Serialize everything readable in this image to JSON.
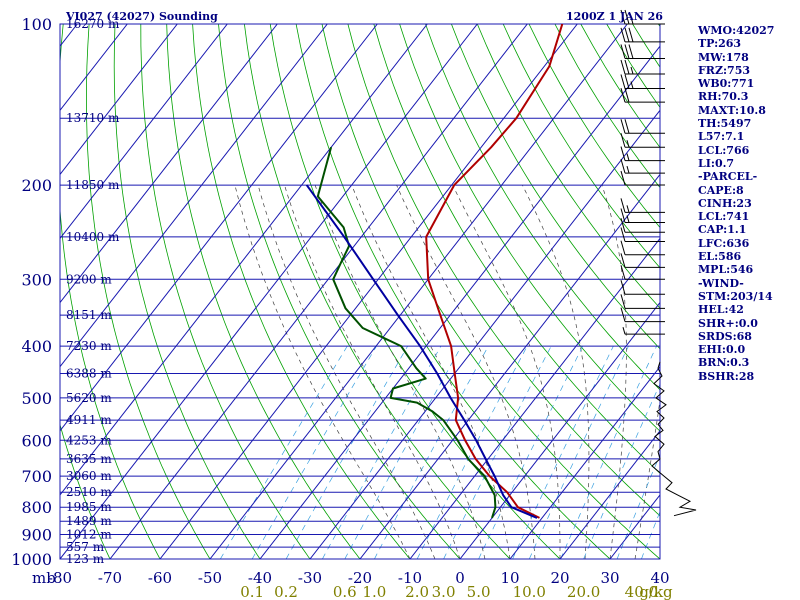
{
  "header": {
    "title": "VI027 (42027) Sounding",
    "time": "1200Z  1 JAN 26"
  },
  "side_panel": [
    "WMO:42027",
    "TP:263",
    "MW:178",
    "FRZ:753",
    "WB0:771",
    "RH:70.3",
    "MAXT:10.8",
    "TH:5497",
    "L57:7.1",
    "LCL:766",
    "LI:0.7",
    "-PARCEL-",
    "CAPE:8",
    "CINH:23",
    "LCL:741",
    "CAP:1.1",
    "LFC:636",
    "EL:586",
    "MPL:546",
    "-WIND-",
    "STM:203/14",
    "HEL:42",
    "SHR+:0.0",
    "SRDS:68",
    "EHI:0.0",
    "BRN:0.3",
    "BSHR:28"
  ],
  "colors": {
    "grid": "#1818b0",
    "dry_adiabat": "#00a000",
    "moist_adiabat": "#404040",
    "mixing_ratio": "#3aa0e0",
    "temperature": "#b00000",
    "dewpoint": "#005000",
    "parcel": "#0000a0",
    "label": "#000080",
    "mixing_label": "#808000"
  },
  "chart_data": {
    "type": "line",
    "title": "VI027 (42027) Sounding",
    "ylabel": "mb",
    "xlabel": "",
    "pressure_levels": [
      100,
      200,
      300,
      400,
      500,
      600,
      700,
      800,
      900,
      1000
    ],
    "pressure_labels": [
      "100",
      "200",
      "300",
      "400",
      "500",
      "600",
      "700",
      "800",
      "900",
      "1000"
    ],
    "height_labels": [
      {
        "p": 100,
        "text": "16270 m"
      },
      {
        "p": 150,
        "text": "13710 m"
      },
      {
        "p": 200,
        "text": "11850 m"
      },
      {
        "p": 250,
        "text": "10400 m"
      },
      {
        "p": 300,
        "text": "9200 m"
      },
      {
        "p": 350,
        "text": "8151 m"
      },
      {
        "p": 400,
        "text": "7230 m"
      },
      {
        "p": 450,
        "text": "6388 m"
      },
      {
        "p": 500,
        "text": "5620 m"
      },
      {
        "p": 550,
        "text": "4911 m"
      },
      {
        "p": 600,
        "text": "4253 m"
      },
      {
        "p": 650,
        "text": "3635 m"
      },
      {
        "p": 700,
        "text": "3060 m"
      },
      {
        "p": 750,
        "text": "2510 m"
      },
      {
        "p": 800,
        "text": "1985 m"
      },
      {
        "p": 850,
        "text": "1489 m"
      },
      {
        "p": 900,
        "text": "1012 m"
      },
      {
        "p": 950,
        "text": "557 m"
      },
      {
        "p": 1000,
        "text": "123 m"
      }
    ],
    "temperature_ticks": [
      -80,
      -70,
      -60,
      -50,
      -40,
      -30,
      -20,
      -10,
      0,
      10,
      20,
      30,
      40
    ],
    "temperature_tick_labels": [
      "-80",
      "-70",
      "-60",
      "-50",
      "-40",
      "-30",
      "-20",
      "-10",
      "0",
      "10",
      "20",
      "30",
      "40"
    ],
    "mixing_ratio_values": [
      0.1,
      0.2,
      0.6,
      1.0,
      2.0,
      3.0,
      5.0,
      10.0,
      20.0,
      40.0
    ],
    "mixing_ratio_labels": [
      "0.1",
      "0.2",
      "0.6",
      "1.0",
      "2.0",
      "3.0",
      "5.0",
      "10.0",
      "20.0",
      "40.0"
    ],
    "mixing_ratio_unit": "g/kg",
    "xlim": [
      -80,
      40
    ],
    "ylim": [
      1000,
      100
    ],
    "log_pressure": true,
    "series": [
      {
        "key": "temperature",
        "points": [
          [
            838,
            9.5
          ],
          [
            800,
            3.5
          ],
          [
            750,
            -1
          ],
          [
            700,
            -7
          ],
          [
            650,
            -12.5
          ],
          [
            600,
            -17.5
          ],
          [
            550,
            -22.5
          ],
          [
            500,
            -25.5
          ],
          [
            450,
            -30
          ],
          [
            400,
            -35
          ],
          [
            350,
            -42
          ],
          [
            300,
            -50
          ],
          [
            250,
            -57
          ],
          [
            200,
            -59.5
          ],
          [
            170,
            -58
          ],
          [
            150,
            -57.5
          ],
          [
            120,
            -59
          ],
          [
            100,
            -63
          ]
        ]
      },
      {
        "key": "dewpoint",
        "points": [
          [
            838,
            0
          ],
          [
            800,
            -1
          ],
          [
            760,
            -3
          ],
          [
            700,
            -8
          ],
          [
            650,
            -14
          ],
          [
            600,
            -19
          ],
          [
            550,
            -25
          ],
          [
            530,
            -28.5
          ],
          [
            510,
            -33
          ],
          [
            500,
            -39
          ],
          [
            480,
            -40
          ],
          [
            460,
            -35
          ],
          [
            440,
            -38.5
          ],
          [
            400,
            -45
          ],
          [
            370,
            -55.5
          ],
          [
            340,
            -62
          ],
          [
            300,
            -69
          ],
          [
            280,
            -70
          ],
          [
            260,
            -71
          ],
          [
            240,
            -75
          ],
          [
            210,
            -85
          ],
          [
            170,
            -90
          ]
        ]
      },
      {
        "key": "parcel",
        "points": [
          [
            838,
            9
          ],
          [
            800,
            2.2
          ],
          [
            760,
            -1.3
          ],
          [
            700,
            -6
          ],
          [
            650,
            -10.5
          ],
          [
            600,
            -15.3
          ],
          [
            550,
            -20.8
          ],
          [
            500,
            -27
          ],
          [
            450,
            -33.5
          ],
          [
            400,
            -41.2
          ],
          [
            350,
            -50.5
          ],
          [
            300,
            -61
          ],
          [
            250,
            -73.4
          ],
          [
            200,
            -89
          ]
        ]
      }
    ],
    "wind_barbs": [
      {
        "p": 100,
        "spd": 25
      },
      {
        "p": 108,
        "spd": 30
      },
      {
        "p": 116,
        "spd": 30
      },
      {
        "p": 124,
        "spd": 25
      },
      {
        "p": 132,
        "spd": 25
      },
      {
        "p": 140,
        "spd": 20
      },
      {
        "p": 160,
        "spd": 20
      },
      {
        "p": 170,
        "spd": 15
      },
      {
        "p": 180,
        "spd": 15
      },
      {
        "p": 190,
        "spd": 15
      },
      {
        "p": 200,
        "spd": 10
      },
      {
        "p": 225,
        "spd": 15
      },
      {
        "p": 235,
        "spd": 15
      },
      {
        "p": 245,
        "spd": 10
      },
      {
        "p": 255,
        "spd": 10
      },
      {
        "p": 270,
        "spd": 10
      },
      {
        "p": 285,
        "spd": 10
      },
      {
        "p": 300,
        "spd": 10
      },
      {
        "p": 320,
        "spd": 10
      },
      {
        "p": 340,
        "spd": 10
      },
      {
        "p": 360,
        "spd": 10
      },
      {
        "p": 380,
        "spd": 5
      }
    ],
    "hodograph_trace": [
      [
        428,
        0
      ],
      [
        440,
        -2
      ],
      [
        455,
        2
      ],
      [
        470,
        -6
      ],
      [
        485,
        4
      ],
      [
        500,
        -4
      ],
      [
        515,
        6
      ],
      [
        530,
        -3
      ],
      [
        545,
        4
      ],
      [
        560,
        -2
      ],
      [
        575,
        3
      ],
      [
        590,
        -5
      ],
      [
        610,
        4
      ],
      [
        630,
        -2
      ],
      [
        650,
        0
      ],
      [
        670,
        -8
      ],
      [
        700,
        4
      ],
      [
        720,
        12
      ],
      [
        740,
        6
      ],
      [
        760,
        18
      ],
      [
        780,
        30
      ],
      [
        800,
        20
      ],
      [
        810,
        36
      ],
      [
        830,
        14
      ]
    ]
  }
}
